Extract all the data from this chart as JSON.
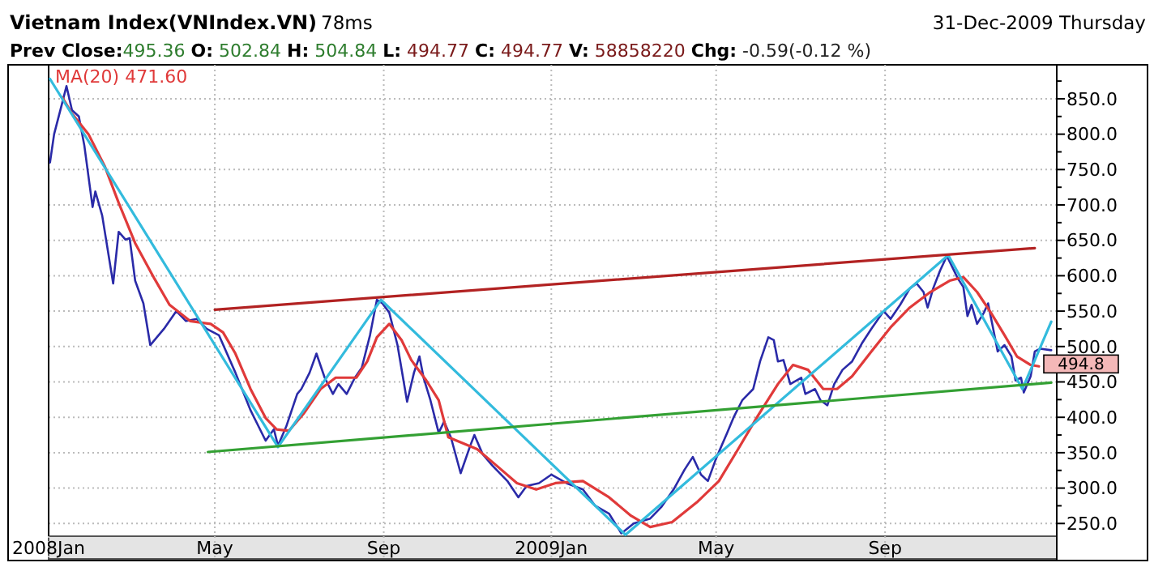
{
  "chart_data": {
    "type": "line",
    "title": "Vietnam Index(VNIndex.VN)",
    "subtitle": "Prev Close:495.36 O: 502.84 H: 504.84 L: 494.77 C: 494.77 V: 58858220 Chg: -0.59(-0.12 %)",
    "annotations": [
      "78ms",
      "31-Dec-2009 Thursday",
      "494.8"
    ],
    "xlim": [
      "2008-01-01",
      "2010-01-04"
    ],
    "ylim": [
      232,
      898
    ],
    "xticks": [
      {
        "value": "2008-01-01",
        "label": "2008Jan"
      },
      {
        "value": "2008-05-01",
        "label": "May"
      },
      {
        "value": "2008-09-01",
        "label": "Sep"
      },
      {
        "value": "2009-01-01",
        "label": "2009Jan"
      },
      {
        "value": "2009-05-01",
        "label": "May"
      },
      {
        "value": "2009-09-01",
        "label": "Sep"
      }
    ],
    "yticks": [
      {
        "value": 250,
        "label": "250.0"
      },
      {
        "value": 275,
        "label": null
      },
      {
        "value": 300,
        "label": "300.0"
      },
      {
        "value": 325,
        "label": null
      },
      {
        "value": 350,
        "label": "350.0"
      },
      {
        "value": 375,
        "label": null
      },
      {
        "value": 400,
        "label": "400.0"
      },
      {
        "value": 425,
        "label": null
      },
      {
        "value": 450,
        "label": "450.0"
      },
      {
        "value": 475,
        "label": null
      },
      {
        "value": 500,
        "label": "500.0"
      },
      {
        "value": 525,
        "label": null
      },
      {
        "value": 550,
        "label": "550.0"
      },
      {
        "value": 575,
        "label": null
      },
      {
        "value": 600,
        "label": "600.0"
      },
      {
        "value": 625,
        "label": null
      },
      {
        "value": 650,
        "label": "650.0"
      },
      {
        "value": 675,
        "label": null
      },
      {
        "value": 700,
        "label": "700.0"
      },
      {
        "value": 725,
        "label": null
      },
      {
        "value": 750,
        "label": "750.0"
      },
      {
        "value": 775,
        "label": null
      },
      {
        "value": 800,
        "label": "800.0"
      },
      {
        "value": 825,
        "label": null
      },
      {
        "value": 850,
        "label": "850.0"
      },
      {
        "value": 875,
        "label": null
      }
    ],
    "grid": true,
    "legend": "top left",
    "series": [
      {
        "color": "#2a2aa8",
        "x": [
          "2008-01-02",
          "2008-01-05",
          "2008-01-11",
          "2008-01-14",
          "2008-01-18",
          "2008-01-23",
          "2008-01-27",
          "2008-02-02",
          "2008-02-04",
          "2008-02-09",
          "2008-02-17",
          "2008-02-21",
          "2008-02-26",
          "2008-02-29",
          "2008-03-04",
          "2008-03-10",
          "2008-03-15",
          "2008-03-25",
          "2008-04-03",
          "2008-04-10",
          "2008-04-18",
          "2008-04-25",
          "2008-05-04",
          "2008-05-16",
          "2008-05-27",
          "2008-06-07",
          "2008-06-13",
          "2008-06-16",
          "2008-06-22",
          "2008-06-30",
          "2008-07-03",
          "2008-07-09",
          "2008-07-14",
          "2008-07-20",
          "2008-07-26",
          "2008-07-30",
          "2008-08-05",
          "2008-08-11",
          "2008-08-16",
          "2008-08-22",
          "2008-08-27",
          "2008-08-31",
          "2008-09-05",
          "2008-09-11",
          "2008-09-18",
          "2008-09-23",
          "2008-09-27",
          "2008-09-30",
          "2008-10-05",
          "2008-10-11",
          "2008-10-15",
          "2008-10-20",
          "2008-10-27",
          "2008-11-03",
          "2008-11-06",
          "2008-11-12",
          "2008-11-19",
          "2008-11-30",
          "2008-12-08",
          "2008-12-14",
          "2008-12-23",
          "2009-01-01",
          "2009-01-12",
          "2009-01-24",
          "2009-02-02",
          "2009-02-12",
          "2009-02-21",
          "2009-03-02",
          "2009-03-14",
          "2009-03-22",
          "2009-03-31",
          "2009-04-08",
          "2009-04-14",
          "2009-04-20",
          "2009-04-25",
          "2009-05-01",
          "2009-05-09",
          "2009-05-14",
          "2009-05-20",
          "2009-05-28",
          "2009-06-02",
          "2009-06-08",
          "2009-06-12",
          "2009-06-15",
          "2009-06-19",
          "2009-06-24",
          "2009-07-02",
          "2009-07-05",
          "2009-07-12",
          "2009-07-16",
          "2009-07-21",
          "2009-07-26",
          "2009-08-01",
          "2009-08-08",
          "2009-08-15",
          "2009-08-22",
          "2009-08-31",
          "2009-09-05",
          "2009-09-12",
          "2009-09-19",
          "2009-09-24",
          "2009-09-29",
          "2009-10-02",
          "2009-10-06",
          "2009-10-11",
          "2009-10-16",
          "2009-10-19",
          "2009-10-24",
          "2009-10-28",
          "2009-10-31",
          "2009-11-03",
          "2009-11-07",
          "2009-11-12",
          "2009-11-15",
          "2009-11-18",
          "2009-11-22",
          "2009-11-27",
          "2009-12-02",
          "2009-12-05",
          "2009-12-09",
          "2009-12-11",
          "2009-12-16",
          "2009-12-19",
          "2009-12-23",
          "2009-12-31"
        ],
        "values": [
          760,
          800,
          845,
          868,
          834,
          825,
          784,
          697,
          719,
          685,
          589,
          662,
          651,
          653,
          593,
          561,
          502,
          525,
          550,
          536,
          539,
          525,
          516,
          463,
          410,
          367,
          383,
          360,
          387,
          433,
          440,
          463,
          490,
          456,
          433,
          447,
          433,
          456,
          470,
          516,
          566,
          561,
          548,
          502,
          422,
          463,
          486,
          456,
          424,
          378,
          394,
          371,
          321,
          360,
          375,
          348,
          332,
          310,
          287,
          303,
          307,
          319,
          307,
          298,
          275,
          264,
          236,
          250,
          257,
          273,
          298,
          326,
          344,
          319,
          310,
          342,
          378,
          401,
          424,
          440,
          479,
          513,
          509,
          479,
          481,
          447,
          456,
          433,
          440,
          424,
          417,
          447,
          467,
          479,
          504,
          525,
          550,
          539,
          559,
          582,
          589,
          577,
          555,
          582,
          607,
          628,
          616,
          596,
          584,
          543,
          559,
          532,
          548,
          561,
          532,
          493,
          502,
          486,
          452,
          456,
          435,
          458,
          493,
          497,
          494.8
        ]
      },
      {
        "name": "MA(20) 471.60",
        "color": "#e03a3a",
        "x": [
          "2008-01-11",
          "2008-01-18",
          "2008-01-30",
          "2008-02-11",
          "2008-02-21",
          "2008-03-04",
          "2008-03-18",
          "2008-03-29",
          "2008-04-13",
          "2008-04-28",
          "2008-05-07",
          "2008-05-16",
          "2008-05-27",
          "2008-06-07",
          "2008-06-15",
          "2008-06-24",
          "2008-07-05",
          "2008-07-17",
          "2008-07-28",
          "2008-08-12",
          "2008-08-20",
          "2008-08-27",
          "2008-09-05",
          "2008-09-14",
          "2008-09-21",
          "2008-10-02",
          "2008-10-11",
          "2008-10-18",
          "2008-11-08",
          "2008-11-22",
          "2008-12-07",
          "2008-12-21",
          "2009-01-04",
          "2009-01-24",
          "2009-02-12",
          "2009-02-28",
          "2009-03-14",
          "2009-03-30",
          "2009-04-17",
          "2009-05-03",
          "2009-05-17",
          "2009-05-31",
          "2009-06-15",
          "2009-06-26",
          "2009-07-07",
          "2009-07-18",
          "2009-07-28",
          "2009-08-08",
          "2009-08-22",
          "2009-09-05",
          "2009-09-19",
          "2009-10-04",
          "2009-10-18",
          "2009-10-28",
          "2009-11-07",
          "2009-11-17",
          "2009-11-27",
          "2009-12-06",
          "2009-12-16",
          "2009-12-22"
        ],
        "values": [
          852,
          829,
          800,
          754,
          703,
          646,
          596,
          559,
          536,
          532,
          520,
          490,
          440,
          399,
          383,
          381,
          406,
          440,
          456,
          456,
          479,
          513,
          532,
          509,
          481,
          452,
          424,
          372,
          355,
          332,
          307,
          298,
          307,
          310,
          287,
          261,
          245,
          252,
          280,
          310,
          355,
          401,
          447,
          474,
          467,
          440,
          440,
          458,
          493,
          527,
          555,
          577,
          593,
          598,
          577,
          548,
          516,
          486,
          474,
          472
        ]
      },
      {
        "color": "#33bbdd",
        "x": [
          "2008-01-02",
          "2008-06-16",
          "2008-08-30",
          "2009-02-24",
          "2009-10-17",
          "2009-12-10",
          "2009-12-31"
        ],
        "values": [
          878,
          358,
          566,
          234,
          629,
          440,
          535
        ]
      },
      {
        "color": "#b22222",
        "x": [
          "2008-05-01",
          "2009-12-19"
        ],
        "values": [
          552,
          639
        ]
      },
      {
        "color": "#33a033",
        "x": [
          "2008-04-26",
          "2009-12-31"
        ],
        "values": [
          351,
          449
        ]
      }
    ]
  }
}
